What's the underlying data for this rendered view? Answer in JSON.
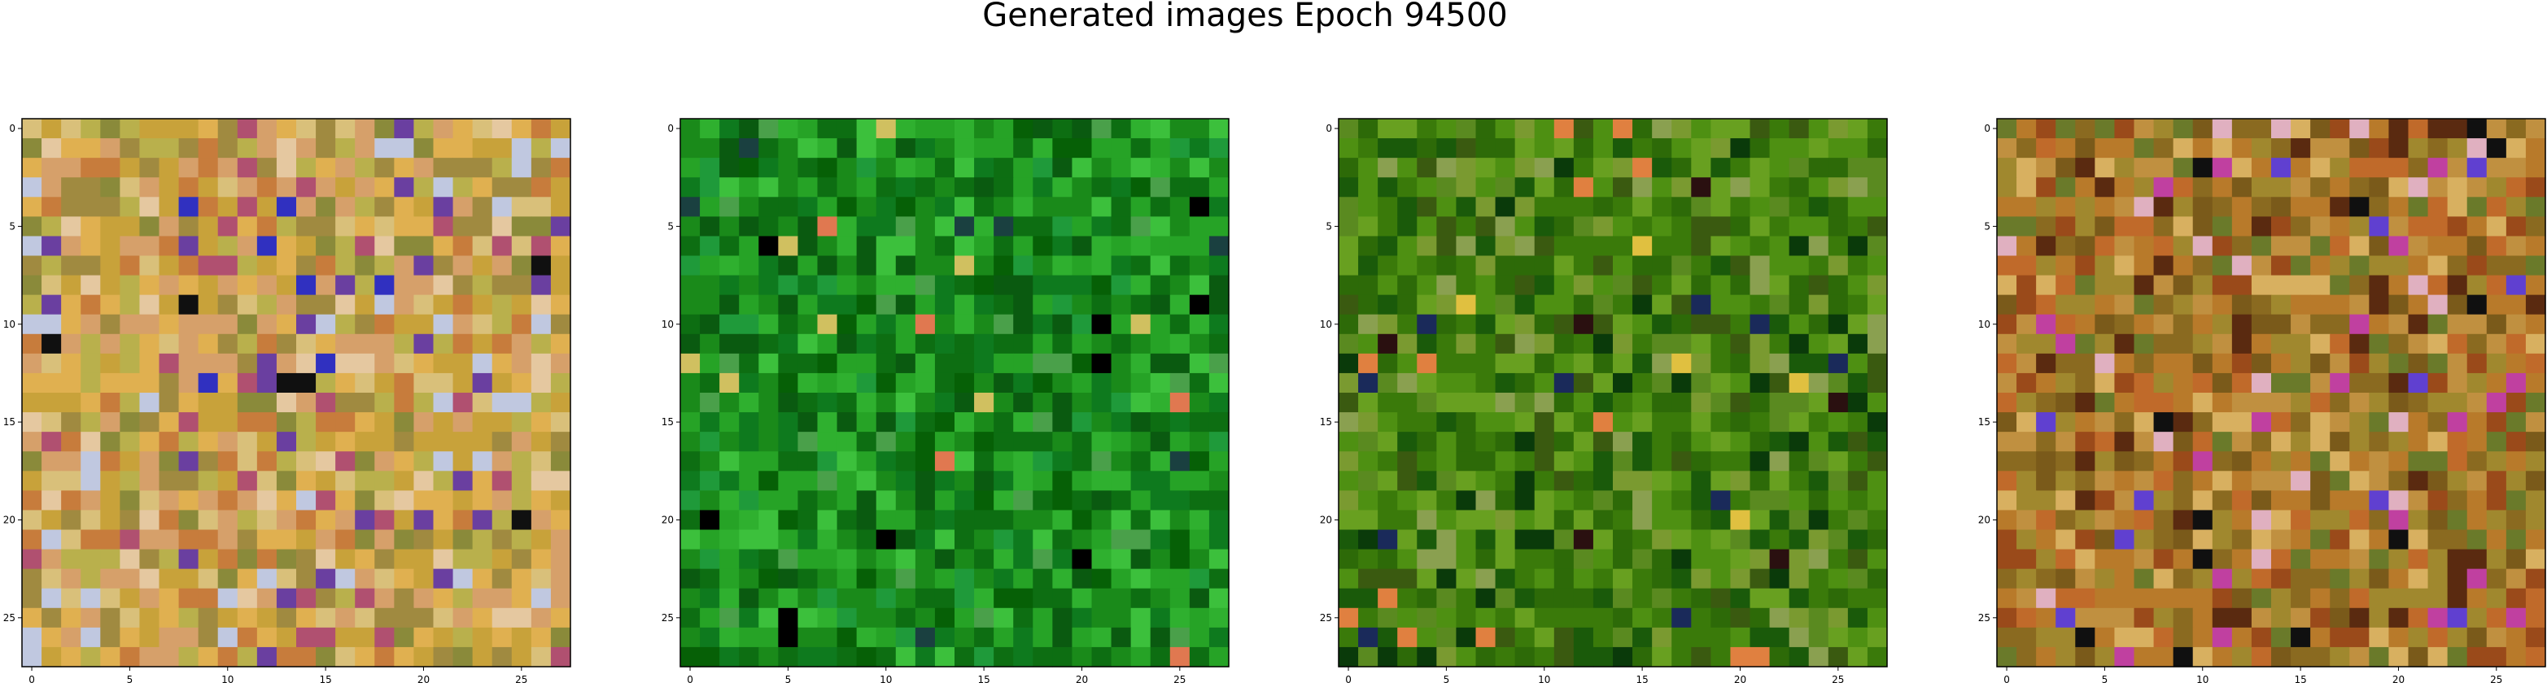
{
  "figure": {
    "title": "Generated images Epoch 94500"
  },
  "chart_data": [
    {
      "type": "heatmap",
      "grid": [
        28,
        28
      ],
      "palette": [
        "#d6a06a",
        "#c8a23a",
        "#b9b04c",
        "#e0b050",
        "#c77c3c",
        "#a08a40",
        "#d9c07a",
        "#b05070",
        "#8a8a3a",
        "#e5c8a0",
        "#6a3fa0",
        "#3030c0",
        "#101010",
        "#c0c8e0"
      ],
      "palette_weights": [
        12,
        12,
        10,
        10,
        8,
        8,
        6,
        3,
        6,
        4,
        2,
        1,
        1,
        3
      ],
      "xticks": [
        0,
        5,
        10,
        15,
        20,
        25
      ],
      "yticks": [
        0,
        5,
        10,
        15,
        20,
        25
      ],
      "xlim": [
        -0.5,
        27.5
      ],
      "ylim": [
        27.5,
        -0.5
      ]
    },
    {
      "type": "heatmap",
      "grid": [
        28,
        28
      ],
      "palette": [
        "#1a8a1a",
        "#0d6e12",
        "#26a326",
        "#0a5a10",
        "#3cc03c",
        "#1f9a3a",
        "#0e7a1e",
        "#2fb02f",
        "#066006",
        "#4aa04a",
        "#000000",
        "#e07850",
        "#d0c060",
        "#1a4040"
      ],
      "palette_weights": [
        18,
        16,
        14,
        10,
        6,
        6,
        12,
        8,
        6,
        3,
        1,
        1,
        1,
        1
      ],
      "xticks": [
        0,
        5,
        10,
        15,
        20,
        25
      ],
      "yticks": [
        0,
        5,
        10,
        15,
        20,
        25
      ],
      "xlim": [
        -0.5,
        27.5
      ],
      "ylim": [
        27.5,
        -0.5
      ]
    },
    {
      "type": "heatmap",
      "grid": [
        28,
        28
      ],
      "palette": [
        "#3a7a0a",
        "#4e9012",
        "#2d6a08",
        "#5a8a20",
        "#1a5a0a",
        "#68a020",
        "#7a9a30",
        "#3a5a10",
        "#0a3a0a",
        "#e08040",
        "#e0c040",
        "#1a2a5a",
        "#2a1010",
        "#8aa050"
      ],
      "palette_weights": [
        16,
        14,
        12,
        8,
        8,
        8,
        6,
        6,
        5,
        1,
        1,
        1,
        1,
        4
      ],
      "xticks": [
        0,
        5,
        10,
        15,
        20,
        25
      ],
      "yticks": [
        0,
        5,
        10,
        15,
        20,
        25
      ],
      "xlim": [
        -0.5,
        27.5
      ],
      "ylim": [
        27.5,
        -0.5
      ]
    },
    {
      "type": "heatmap",
      "grid": [
        28,
        28
      ],
      "palette": [
        "#b87a2a",
        "#8a6a20",
        "#a0882e",
        "#c09040",
        "#7a5a1a",
        "#9a4a1a",
        "#c06a2a",
        "#d8b060",
        "#6a7a2a",
        "#5a2a10",
        "#c040a0",
        "#6040d0",
        "#101010",
        "#e0b0c0"
      ],
      "palette_weights": [
        14,
        12,
        12,
        10,
        8,
        6,
        8,
        6,
        6,
        4,
        2,
        2,
        1,
        2
      ],
      "xticks": [
        0,
        5,
        10,
        15,
        20,
        25
      ],
      "yticks": [
        0,
        5,
        10,
        15,
        20,
        25
      ],
      "xlim": [
        -0.5,
        27.5
      ],
      "ylim": [
        27.5,
        -0.5
      ]
    }
  ]
}
